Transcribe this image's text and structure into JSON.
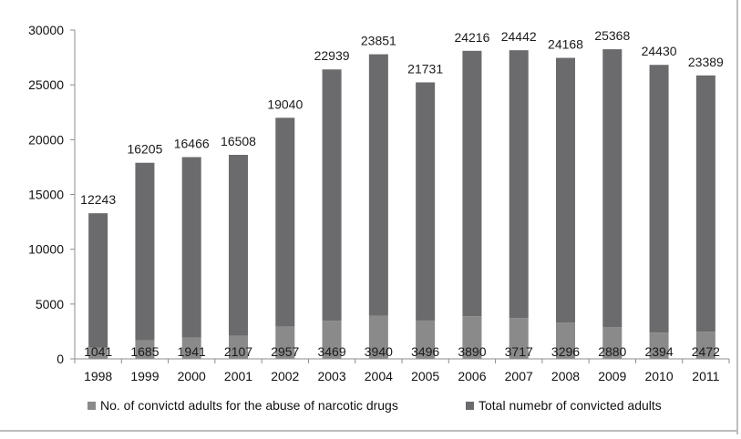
{
  "chart_data": {
    "type": "bar",
    "stacked": true,
    "categories": [
      "1998",
      "1999",
      "2000",
      "2001",
      "2002",
      "2003",
      "2004",
      "2005",
      "2006",
      "2007",
      "2008",
      "2009",
      "2010",
      "2011"
    ],
    "series": [
      {
        "name": "No. of convictd adults for the abuse of narcotic drugs",
        "values": [
          1041,
          1685,
          1941,
          2107,
          2957,
          3469,
          3940,
          3496,
          3890,
          3717,
          3296,
          2880,
          2394,
          2472
        ],
        "labels": [
          "1041",
          "1685",
          "1941",
          "2107",
          "2957",
          "3469",
          "3940",
          "3496",
          "3890",
          "3717",
          "3296",
          "2880",
          "2394",
          "2472"
        ],
        "color": "#8a8a8a"
      },
      {
        "name": "Total numebr of convicted adults",
        "values": [
          12243,
          16205,
          16466,
          16508,
          19040,
          22939,
          23851,
          21731,
          24216,
          24442,
          24168,
          25368,
          24430,
          23389
        ],
        "labels": [
          "12243",
          "16205",
          "16466",
          "16508",
          "19040",
          "22939",
          "23851",
          "21731",
          "24216",
          "24442",
          "24168",
          "25368",
          "24430",
          "23389"
        ],
        "color": "#6b6b6d"
      }
    ],
    "ylim": [
      0,
      30000
    ],
    "yticks": [
      "0",
      "5000",
      "10000",
      "15000",
      "20000",
      "25000",
      "30000"
    ],
    "grid": false,
    "legend_position": "bottom"
  }
}
